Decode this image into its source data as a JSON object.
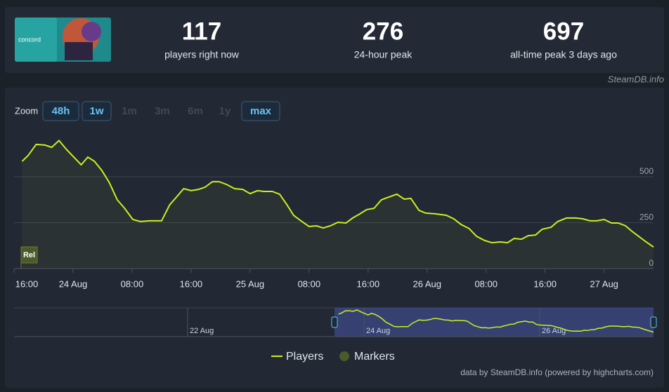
{
  "stats": [
    {
      "value": 117,
      "label": "players right now"
    },
    {
      "value": 276,
      "label": "24-hour peak"
    },
    {
      "value": 697,
      "label": "all-time peak 3 days ago"
    }
  ],
  "credit": "SteamDB.info",
  "zoom": {
    "label": "Zoom",
    "buttons": [
      "48h",
      "1w",
      "1m",
      "3m",
      "6m",
      "1y",
      "max"
    ],
    "active": [
      "48h",
      "1w",
      "max"
    ]
  },
  "chart_data": {
    "type": "line",
    "x": [
      1.1,
      1.9,
      3.0,
      4.2,
      5.1,
      6.1,
      7.1,
      8.0,
      9.1,
      10.0,
      10.9,
      11.9,
      12.9,
      14.0,
      15.0,
      16.1,
      17.1,
      18.4,
      20.0,
      21.1,
      22.1,
      23.0,
      24.0,
      25.0,
      25.9,
      26.9,
      27.8,
      28.8,
      29.9,
      31.0,
      32.0,
      33.0,
      33.9,
      35.0,
      36.0,
      37.0,
      37.9,
      38.9,
      40.0,
      41.0,
      41.9,
      42.9,
      43.9,
      45.0,
      45.9,
      46.9,
      47.8,
      48.8,
      49.8,
      50.8,
      51.9,
      52.9,
      53.8,
      54.9,
      55.8,
      57.1,
      58.6,
      59.6,
      60.6,
      61.7,
      62.7,
      63.8,
      64.8,
      65.9,
      66.9,
      67.8,
      68.8,
      69.7,
      70.7,
      71.6,
      72.8,
      73.7,
      74.9,
      76.2,
      77.1,
      78.1,
      79.0,
      80.0,
      81.0,
      81.9,
      82.9,
      83.8,
      84.8,
      85.7,
      86.7
    ],
    "series": [
      {
        "name": "Players",
        "color": "#c9f01f",
        "values": [
          584,
          615,
          676,
          672,
          660,
          697,
          649,
          611,
          565,
          607,
          584,
          534,
          469,
          374,
          328,
          267,
          256,
          260,
          260,
          347,
          393,
          435,
          424,
          431,
          443,
          473,
          473,
          458,
          435,
          431,
          408,
          424,
          420,
          420,
          405,
          347,
          290,
          260,
          229,
          233,
          221,
          233,
          252,
          248,
          275,
          298,
          321,
          328,
          374,
          389,
          405,
          378,
          382,
          317,
          302,
          298,
          290,
          271,
          240,
          218,
          176,
          153,
          141,
          145,
          141,
          164,
          160,
          179,
          183,
          214,
          225,
          256,
          275,
          275,
          271,
          260,
          260,
          267,
          248,
          248,
          233,
          202,
          172,
          145,
          117
        ]
      }
    ],
    "markers_legend": "Markers",
    "marker_flag": "Rel",
    "xlim": [
      0,
      86.7
    ],
    "xticks": [
      {
        "value": 0,
        "label": "16:00"
      },
      {
        "value": 8,
        "label": "24 Aug"
      },
      {
        "value": 16,
        "label": "08:00"
      },
      {
        "value": 24,
        "label": "16:00"
      },
      {
        "value": 32,
        "label": "25 Aug"
      },
      {
        "value": 40,
        "label": "08:00"
      },
      {
        "value": 48,
        "label": "16:00"
      },
      {
        "value": 56,
        "label": "26 Aug"
      },
      {
        "value": 64,
        "label": "08:00"
      },
      {
        "value": 72,
        "label": "16:00"
      },
      {
        "value": 80,
        "label": "27 Aug"
      }
    ],
    "ylim": [
      0,
      750
    ],
    "yticks": [
      0,
      250,
      500
    ],
    "grid": true,
    "navigator_labels": [
      "22 Aug",
      "24 Aug",
      "26 Aug"
    ]
  },
  "footer": "data by SteamDB.info (powered by highcharts.com)"
}
